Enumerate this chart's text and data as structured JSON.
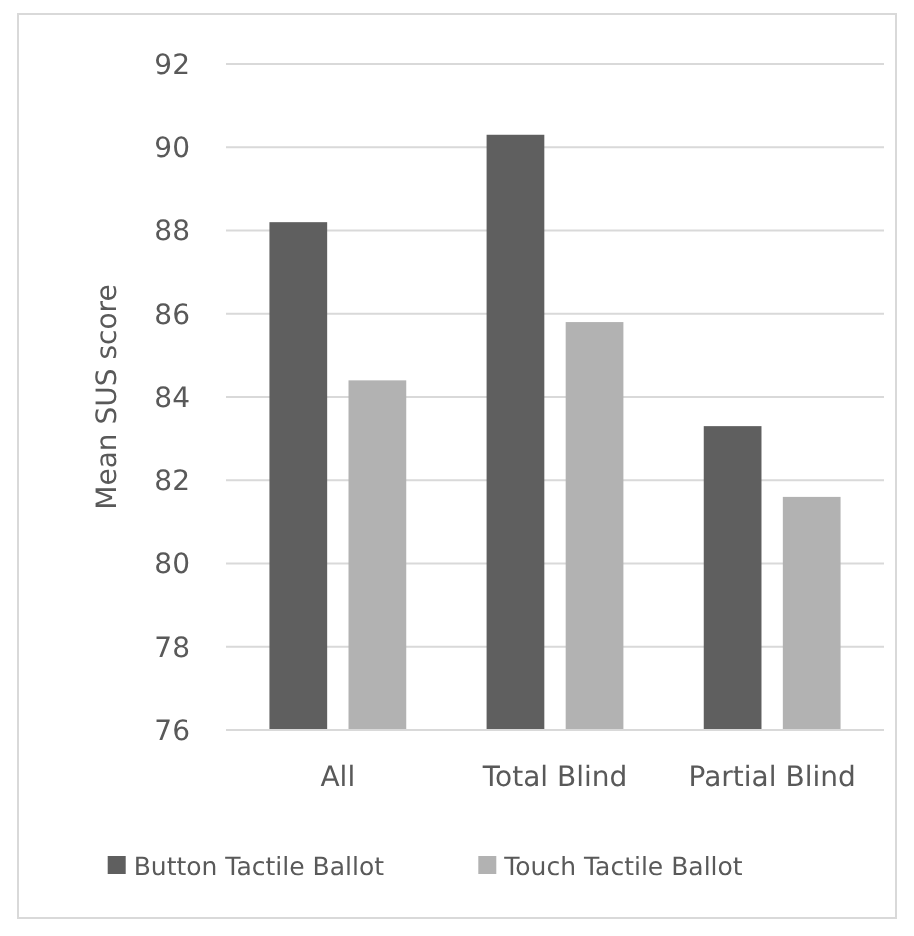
{
  "chart_data": {
    "type": "bar",
    "ylabel": "Mean SUS score",
    "categories": [
      "All",
      "Total Blind",
      "Partial Blind"
    ],
    "series": [
      {
        "name": "Button Tactile Ballot",
        "color": "#5f5f5f",
        "values": [
          88.2,
          90.3,
          83.3
        ]
      },
      {
        "name": "Touch Tactile Ballot",
        "color": "#b2b2b2",
        "values": [
          84.4,
          85.8,
          81.6
        ]
      }
    ],
    "ylim": [
      76,
      92
    ],
    "yticks": [
      76,
      78,
      80,
      82,
      84,
      86,
      88,
      90,
      92
    ],
    "grid": "y",
    "legend": "bottom"
  }
}
